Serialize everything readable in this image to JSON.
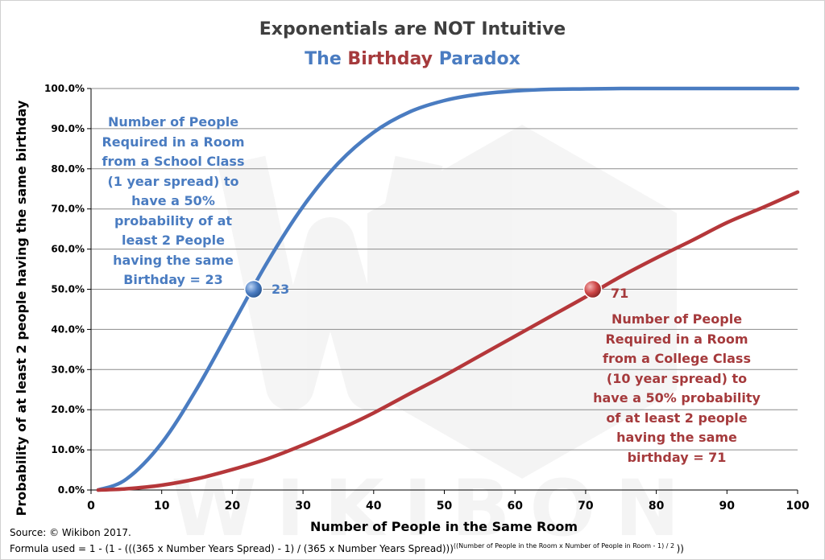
{
  "title": "Exponentials are NOT Intuitive",
  "subtitle": {
    "part1": "The",
    "part2": "Birthday",
    "part3": "Paradox"
  },
  "footer": {
    "source": "Source:  © Wikibon 2017.",
    "formula_main": "Formula used = 1 - (1 - (((365 x Number Years Spread) - 1) / (365 x Number Years Spread)))",
    "formula_exponent": "((Number of People in the Room x Number of People in Room  - 1) / 2 ",
    "formula_close": "))"
  },
  "watermark": {
    "text": "WIKIBON"
  },
  "annotations": {
    "school": "Number of People Required in a Room from a School Class (1 year spread) to have a 50% probability of at least 2 People  having the same Birthday = 23",
    "college": "Number of People Required in a Room from a College Class (10 year spread) to have a 50% probability of at least 2 people  having the same birthday = 71",
    "school_point_label": "23",
    "college_point_label": "71"
  },
  "colors": {
    "blue": "#4a7cc1",
    "red": "#b5373a",
    "title": "#3f3f3f"
  },
  "chart_data": {
    "type": "line",
    "title": "Exponentials are NOT Intuitive",
    "subtitle": "The Birthday Paradox",
    "xlabel": "Number of People in the Same Room",
    "ylabel": "Probability of at least 2 people having the same birthday",
    "xlim": [
      0,
      100
    ],
    "ylim": [
      0,
      1
    ],
    "x_ticks": [
      "0",
      "10",
      "20",
      "30",
      "40",
      "50",
      "60",
      "70",
      "80",
      "90",
      "100"
    ],
    "y_ticks": [
      "0.0%",
      "10.0%",
      "20.0%",
      "30.0%",
      "40.0%",
      "50.0%",
      "60.0%",
      "70.0%",
      "80.0%",
      "90.0%",
      "100.0%"
    ],
    "grid": "horizontal",
    "x": [
      1,
      5,
      10,
      15,
      20,
      25,
      30,
      35,
      40,
      45,
      50,
      55,
      60,
      65,
      70,
      75,
      80,
      85,
      90,
      95,
      100
    ],
    "series": [
      {
        "values": [
          0.0,
          0.027,
          0.117,
          0.253,
          0.411,
          0.569,
          0.706,
          0.814,
          0.891,
          0.941,
          0.97,
          0.986,
          0.994,
          0.998,
          0.999,
          1.0,
          1.0,
          1.0,
          1.0,
          1.0,
          1.0
        ]
      },
      {
        "values": [
          0.0,
          0.003,
          0.012,
          0.028,
          0.051,
          0.078,
          0.112,
          0.15,
          0.192,
          0.239,
          0.285,
          0.334,
          0.383,
          0.432,
          0.481,
          0.532,
          0.578,
          0.621,
          0.666,
          0.703,
          0.742
        ]
      }
    ],
    "markers": [
      {
        "x": 23,
        "y": 0.5
      },
      {
        "x": 71,
        "y": 0.5
      }
    ]
  }
}
